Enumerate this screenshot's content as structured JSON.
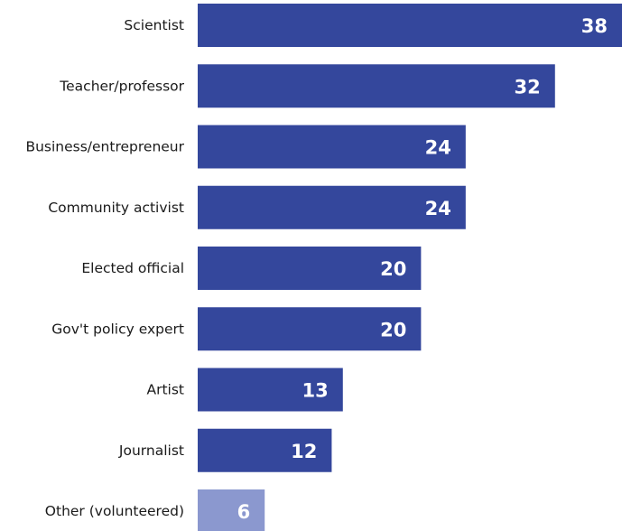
{
  "chart_data": {
    "type": "bar",
    "orientation": "horizontal",
    "categories": [
      "Scientist",
      "Teacher/professor",
      "Business/entrepreneur",
      "Community activist",
      "Elected official",
      "Gov't policy expert",
      "Artist",
      "Journalist",
      "Other (volunteered)"
    ],
    "values": [
      38,
      32,
      24,
      24,
      20,
      20,
      13,
      12,
      6
    ],
    "highlight_color": "#34479c",
    "muted_color": "#8b98cf",
    "muted_categories": [
      "Other (volunteered)"
    ],
    "title": "",
    "xlabel": "",
    "ylabel": "",
    "xlim": [
      0,
      38
    ],
    "grid": false,
    "legend": "none"
  }
}
